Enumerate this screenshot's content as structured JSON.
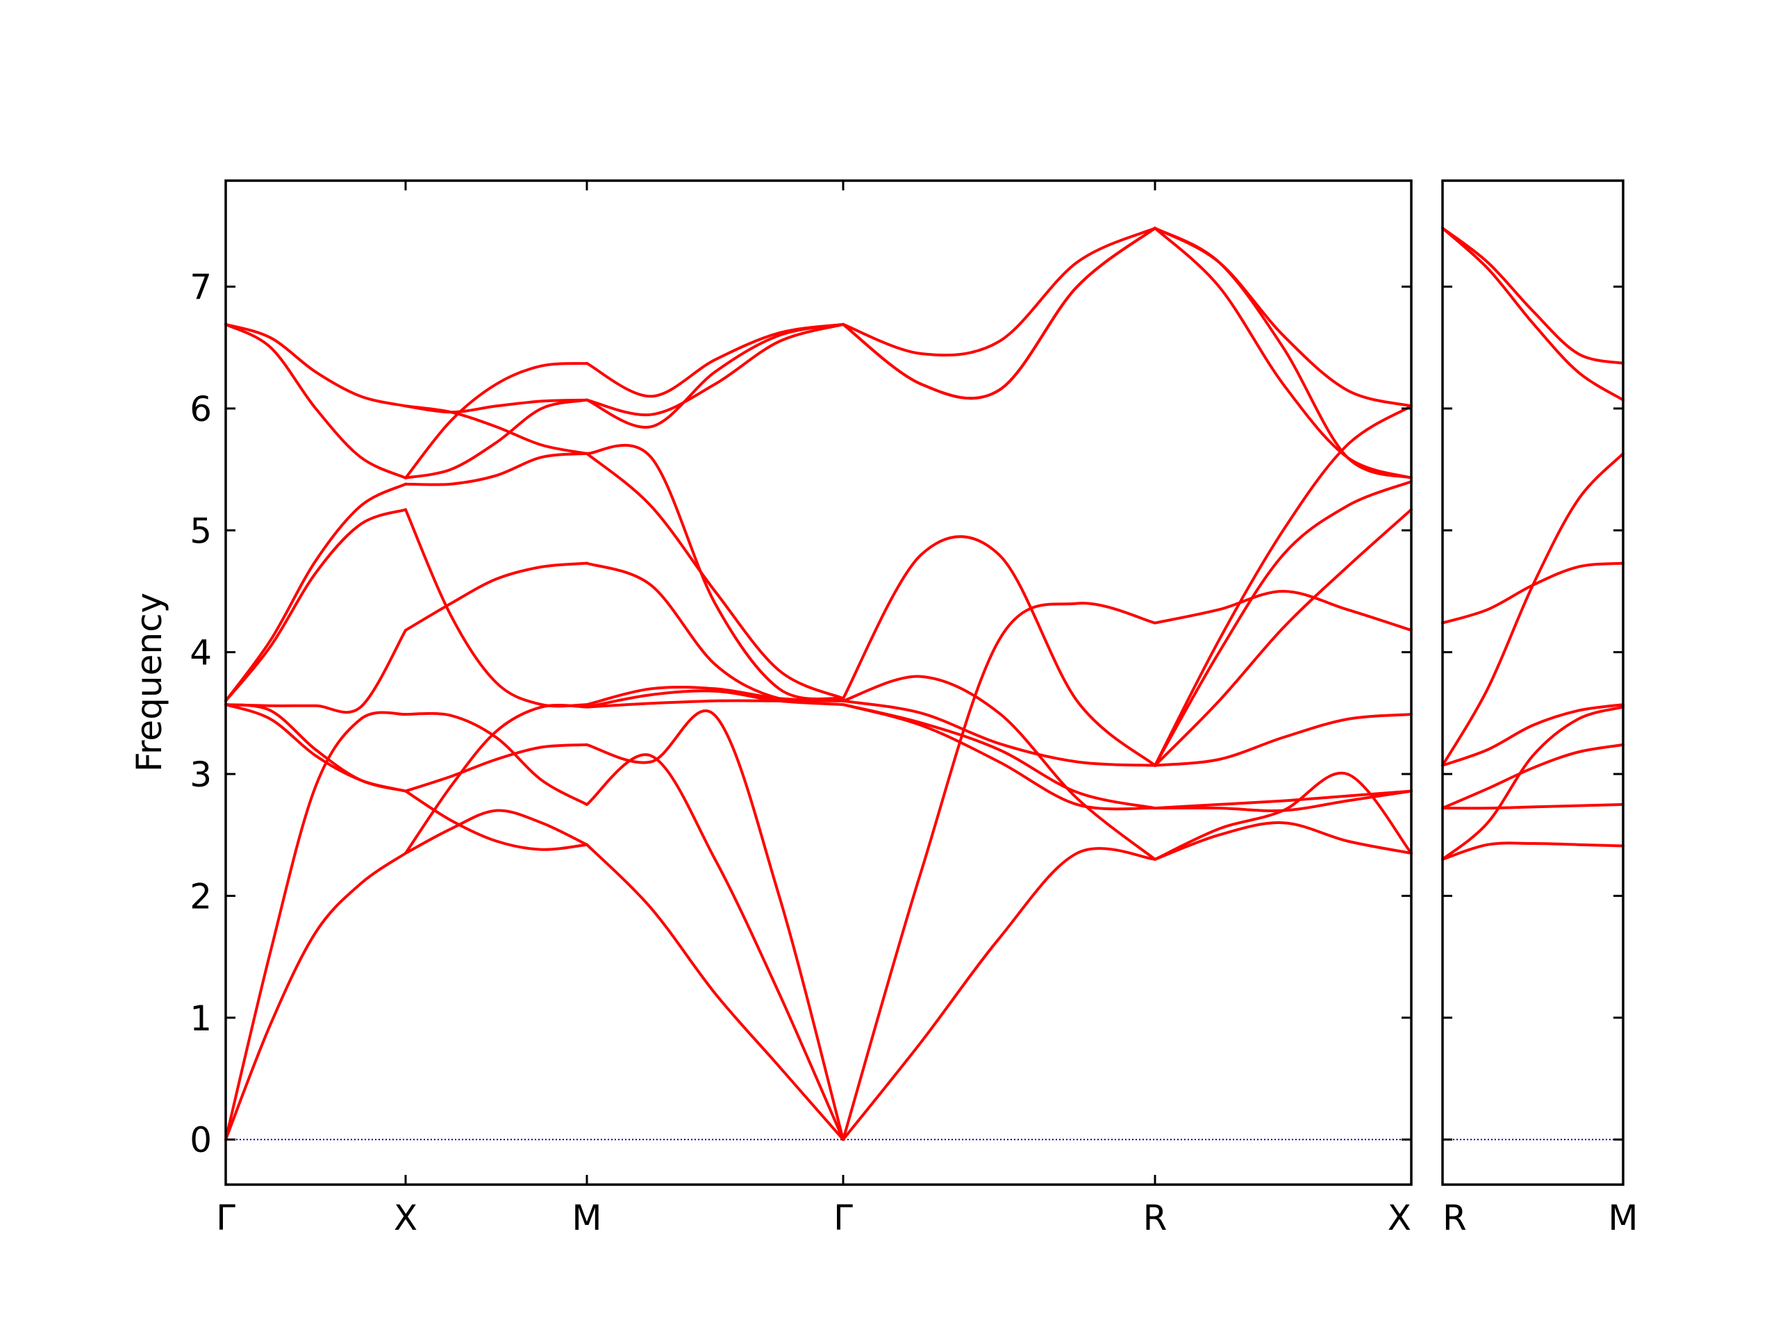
{
  "chart_data": {
    "type": "line",
    "ylabel": "Frequency",
    "ylim": [
      -0.37,
      7.87
    ],
    "yticks": [
      0,
      1,
      2,
      3,
      4,
      5,
      6,
      7
    ],
    "line_color": "#ff0000",
    "zero_line_color": "#0000aa",
    "grid": false,
    "panels": [
      {
        "xticks": [
          "Γ",
          "X",
          "M",
          "Γ",
          "R",
          "X"
        ],
        "segments": [
          {
            "from": "Γ",
            "to": "X",
            "x": [
              0,
              0.25,
              0.5,
              0.75,
              1
            ],
            "series": [
              {
                "values": [
                  0,
                  0.95,
                  1.7,
                  2.1,
                  2.35
                ]
              },
              {
                "values": [
                  0,
                  1.55,
                  2.9,
                  3.45,
                  3.49
                ]
              },
              {
                "values": [
                  3.57,
                  3.45,
                  3.15,
                  2.95,
                  2.86
                ]
              },
              {
                "values": [
                  3.57,
                  3.52,
                  3.2,
                  2.95,
                  2.86
                ]
              },
              {
                "values": [
                  3.57,
                  3.56,
                  3.56,
                  3.55,
                  4.18
                ]
              },
              {
                "values": [
                  3.6,
                  4.05,
                  4.65,
                  5.05,
                  5.17
                ]
              },
              {
                "values": [
                  3.6,
                  4.1,
                  4.75,
                  5.2,
                  5.38
                ]
              },
              {
                "values": [
                  6.69,
                  6.58,
                  6.3,
                  6.1,
                  6.02
                ]
              },
              {
                "values": [
                  6.69,
                  6.5,
                  6.0,
                  5.6,
                  5.43
                ]
              }
            ]
          },
          {
            "from": "X",
            "to": "M",
            "x": [
              0,
              0.25,
              0.5,
              0.75,
              1
            ],
            "series": [
              {
                "values": [
                  2.35,
                  2.55,
                  2.7,
                  2.6,
                  2.42
                ]
              },
              {
                "values": [
                  2.86,
                  2.62,
                  2.45,
                  2.38,
                  2.42
                ]
              },
              {
                "values": [
                  3.49,
                  3.48,
                  3.3,
                  2.95,
                  2.75
                ]
              },
              {
                "values": [
                  2.86,
                  2.98,
                  3.12,
                  3.22,
                  3.24
                ]
              },
              {
                "values": [
                  2.35,
                  2.9,
                  3.35,
                  3.55,
                  3.55
                ]
              },
              {
                "values": [
                  5.17,
                  4.3,
                  3.75,
                  3.57,
                  3.57
                ]
              },
              {
                "values": [
                  4.18,
                  4.4,
                  4.6,
                  4.7,
                  4.73
                ]
              },
              {
                "values": [
                  5.38,
                  5.38,
                  5.45,
                  5.6,
                  5.63
                ]
              },
              {
                "values": [
                  5.43,
                  5.5,
                  5.72,
                  6.0,
                  6.07
                ]
              },
              {
                "values": [
                  5.43,
                  5.9,
                  6.2,
                  6.35,
                  6.37
                ]
              },
              {
                "values": [
                  6.02,
                  5.97,
                  5.85,
                  5.7,
                  5.63
                ]
              },
              {
                "values": [
                  6.02,
                  5.97,
                  6.02,
                  6.06,
                  6.07
                ]
              }
            ]
          },
          {
            "from": "M",
            "to": "Γ",
            "x": [
              0,
              0.25,
              0.5,
              0.75,
              1
            ],
            "series": [
              {
                "values": [
                  2.42,
                  1.9,
                  1.2,
                  0.6,
                  0
                ]
              },
              {
                "values": [
                  2.75,
                  3.15,
                  2.3,
                  1.2,
                  0
                ]
              },
              {
                "values": [
                  3.24,
                  3.1,
                  3.48,
                  2.0,
                  0
                ]
              },
              {
                "values": [
                  3.55,
                  3.65,
                  3.68,
                  3.6,
                  3.57
                ]
              },
              {
                "values": [
                  3.57,
                  3.7,
                  3.7,
                  3.62,
                  3.6
                ]
              },
              {
                "values": [
                  3.55,
                  3.58,
                  3.6,
                  3.6,
                  3.6
                ]
              },
              {
                "values": [
                  4.73,
                  4.55,
                  3.9,
                  3.62,
                  3.62
                ]
              },
              {
                "values": [
                  5.63,
                  5.2,
                  4.5,
                  3.85,
                  3.62
                ]
              },
              {
                "values": [
                  5.63,
                  5.6,
                  4.4,
                  3.7,
                  3.62
                ]
              },
              {
                "values": [
                  6.07,
                  5.95,
                  6.2,
                  6.55,
                  6.69
                ]
              },
              {
                "values": [
                  6.07,
                  5.85,
                  6.3,
                  6.6,
                  6.69
                ]
              },
              {
                "values": [
                  6.37,
                  6.1,
                  6.4,
                  6.62,
                  6.69
                ]
              }
            ]
          },
          {
            "from": "Γ",
            "to": "R",
            "x": [
              0,
              0.25,
              0.5,
              0.75,
              1
            ],
            "series": [
              {
                "values": [
                  0,
                  0.8,
                  1.65,
                  2.35,
                  2.3
                ]
              },
              {
                "values": [
                  0,
                  2.2,
                  4.1,
                  4.4,
                  4.24
                ]
              },
              {
                "values": [
                  3.57,
                  3.4,
                  3.1,
                  2.75,
                  2.72
                ]
              },
              {
                "values": [
                  3.57,
                  3.42,
                  3.2,
                  2.85,
                  2.72
                ]
              },
              {
                "values": [
                  3.6,
                  3.8,
                  3.5,
                  2.8,
                  2.3
                ]
              },
              {
                "values": [
                  3.6,
                  3.5,
                  3.25,
                  3.1,
                  3.07
                ]
              },
              {
                "values": [
                  3.62,
                  4.8,
                  4.8,
                  3.6,
                  3.07
                ]
              },
              {
                "values": [
                  6.69,
                  6.45,
                  6.55,
                  7.2,
                  7.48
                ]
              },
              {
                "values": [
                  6.69,
                  6.2,
                  6.15,
                  7.0,
                  7.48
                ]
              },
              {
                "values": [
                  6.69,
                  6.2,
                  6.15,
                  7.0,
                  7.48
                ]
              }
            ]
          },
          {
            "from": "R",
            "to": "X",
            "x": [
              0,
              0.25,
              0.5,
              0.75,
              1
            ],
            "series": [
              {
                "values": [
                  2.3,
                  2.5,
                  2.6,
                  2.45,
                  2.35
                ]
              },
              {
                "values": [
                  2.3,
                  2.55,
                  2.7,
                  3.0,
                  2.35
                ]
              },
              {
                "values": [
                  2.72,
                  2.75,
                  2.78,
                  2.82,
                  2.86
                ]
              },
              {
                "values": [
                  2.72,
                  2.72,
                  2.7,
                  2.78,
                  2.86
                ]
              },
              {
                "values": [
                  3.07,
                  3.12,
                  3.3,
                  3.45,
                  3.49
                ]
              },
              {
                "values": [
                  4.24,
                  4.35,
                  4.5,
                  4.35,
                  4.18
                ]
              },
              {
                "values": [
                  3.07,
                  3.6,
                  4.2,
                  4.7,
                  5.17
                ]
              },
              {
                "values": [
                  3.07,
                  4.0,
                  4.8,
                  5.2,
                  5.4
                ]
              },
              {
                "values": [
                  3.07,
                  4.1,
                  5.0,
                  5.7,
                  6.02
                ]
              },
              {
                "values": [
                  7.48,
                  7.2,
                  6.5,
                  5.6,
                  5.43
                ]
              },
              {
                "values": [
                  7.48,
                  7.0,
                  6.2,
                  5.6,
                  5.43
                ]
              },
              {
                "values": [
                  7.48,
                  7.2,
                  6.6,
                  6.15,
                  6.02
                ]
              }
            ]
          }
        ]
      },
      {
        "xticks": [
          "R",
          "M"
        ],
        "segments": [
          {
            "from": "R",
            "to": "M",
            "x": [
              0,
              0.25,
              0.5,
              0.75,
              1
            ],
            "series": [
              {
                "values": [
                  2.3,
                  2.42,
                  2.43,
                  2.42,
                  2.41
                ]
              },
              {
                "values": [
                  2.72,
                  2.72,
                  2.73,
                  2.74,
                  2.75
                ]
              },
              {
                "values": [
                  2.72,
                  2.88,
                  3.05,
                  3.18,
                  3.24
                ]
              },
              {
                "values": [
                  2.3,
                  2.6,
                  3.15,
                  3.45,
                  3.55
                ]
              },
              {
                "values": [
                  3.07,
                  3.2,
                  3.4,
                  3.52,
                  3.57
                ]
              },
              {
                "values": [
                  3.07,
                  3.7,
                  4.55,
                  5.25,
                  5.63
                ]
              },
              {
                "values": [
                  4.24,
                  4.35,
                  4.55,
                  4.7,
                  4.73
                ]
              },
              {
                "values": [
                  7.48,
                  7.2,
                  6.8,
                  6.45,
                  6.37
                ]
              },
              {
                "values": [
                  7.48,
                  7.15,
                  6.7,
                  6.3,
                  6.07
                ]
              }
            ]
          }
        ]
      }
    ]
  }
}
